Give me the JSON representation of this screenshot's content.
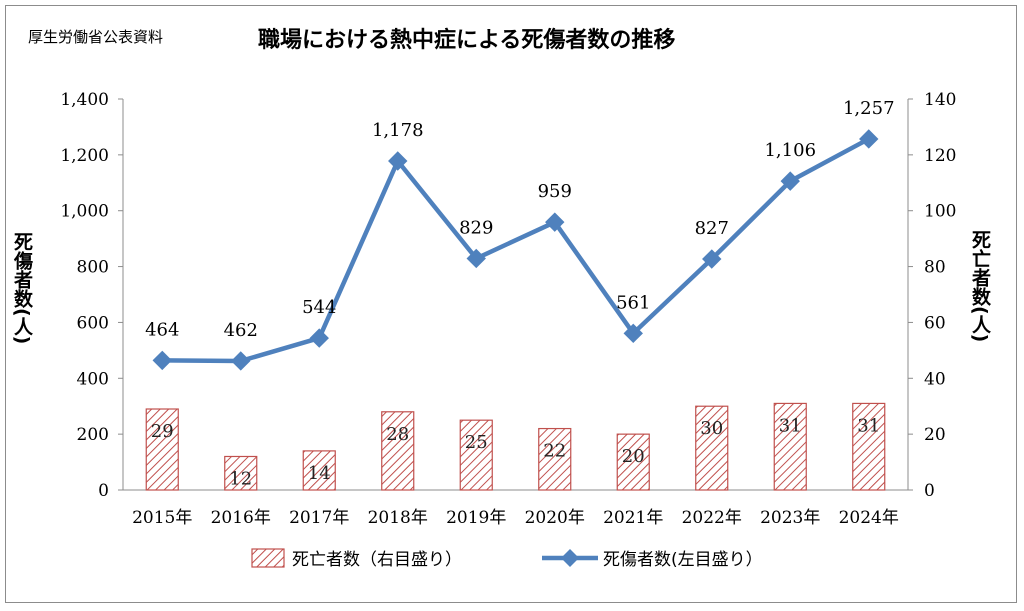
{
  "source_label": "厚生労働省公表資料",
  "chart_data": {
    "type": "bar+line",
    "title": "職場における熱中症による死傷者数の推移",
    "categories": [
      "2015年",
      "2016年",
      "2017年",
      "2018年",
      "2019年",
      "2020年",
      "2021年",
      "2022年",
      "2023年",
      "2024年"
    ],
    "series": [
      {
        "name": "死亡者数（右目盛り）",
        "type": "bar",
        "axis": "right",
        "values": [
          29,
          12,
          14,
          28,
          25,
          22,
          20,
          30,
          31,
          31
        ],
        "color": "#c0504d"
      },
      {
        "name": "死傷者数(左目盛り）",
        "type": "line",
        "axis": "left",
        "values": [
          464,
          462,
          544,
          1178,
          829,
          959,
          561,
          827,
          1106,
          1257
        ],
        "color": "#4f81bd"
      }
    ],
    "y_left": {
      "label": "死傷者数(人)",
      "min": 0,
      "max": 1400,
      "ticks": [
        "0",
        "200",
        "400",
        "600",
        "800",
        "1,000",
        "1,200",
        "1,400"
      ]
    },
    "y_right": {
      "label": "死亡者数(人)",
      "min": 0,
      "max": 140,
      "ticks": [
        "0",
        "20",
        "40",
        "60",
        "80",
        "100",
        "120",
        "140"
      ]
    },
    "line_value_labels": [
      "464",
      "462",
      "544",
      "1,178",
      "829",
      "959",
      "561",
      "827",
      "1,106",
      "1,257"
    ],
    "grid": false,
    "legend": "bottom"
  }
}
